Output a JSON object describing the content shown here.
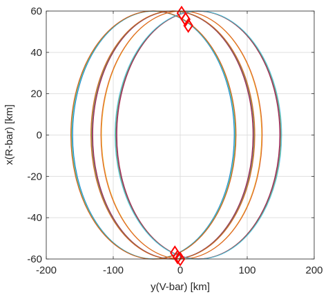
{
  "chart_data": {
    "type": "line",
    "title": "",
    "xlabel": "y(V-bar) [km]",
    "ylabel": "x(R-bar) [km]",
    "xlim": [
      -200,
      200
    ],
    "ylim": [
      -60,
      60
    ],
    "xticks": [
      -200,
      -100,
      0,
      100,
      200
    ],
    "yticks": [
      -60,
      -40,
      -20,
      0,
      20,
      40,
      60
    ],
    "xtick_labels": [
      "-200",
      "-100",
      "0",
      "100",
      "200"
    ],
    "ytick_labels": [
      "-60",
      "-40",
      "-20",
      "0",
      "20",
      "40",
      "60"
    ],
    "grid": true,
    "box": true,
    "description_of_series": "closed relative-motion ellipses, each drawn as many closely overlapping colored trajectories",
    "series": [
      {
        "ymin": -162,
        "ymax": 82,
        "xmin": -60,
        "xmax": 60,
        "colors": [
          "#0072BD",
          "#4DBEEE",
          "#77AC30",
          "#D95319"
        ]
      },
      {
        "ymin": -132,
        "ymax": 110,
        "xmin": -60,
        "xmax": 60,
        "colors": [
          "#A2142F",
          "#7E2F8E",
          "#77AC30",
          "#D95319"
        ]
      },
      {
        "ymin": -118,
        "ymax": 122,
        "xmin": -60,
        "xmax": 60,
        "colors": [
          "#EDB120",
          "#D95319"
        ]
      },
      {
        "ymin": -96,
        "ymax": 150,
        "xmin": -60,
        "xmax": 60,
        "colors": [
          "#A2142F",
          "#7E2F8E",
          "#77AC30",
          "#4DBEEE"
        ]
      }
    ],
    "markers": [
      {
        "y": 2,
        "x": 59
      },
      {
        "y": 8,
        "x": 56
      },
      {
        "y": 12,
        "x": 53
      },
      {
        "y": -8,
        "x": -57
      },
      {
        "y": -4,
        "x": -59
      },
      {
        "y": 0,
        "x": -60
      }
    ],
    "marker_color": "#FF0000",
    "marker_shape": "diamond"
  }
}
